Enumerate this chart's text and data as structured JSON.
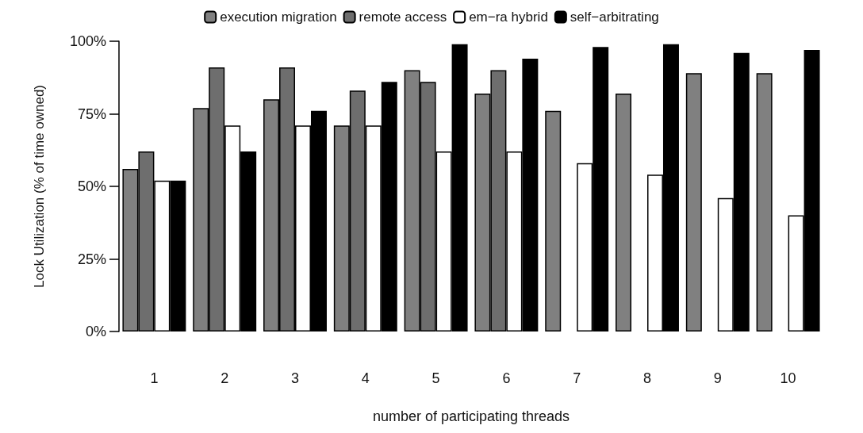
{
  "chart_data": {
    "type": "bar",
    "xlabel": "number of participating threads",
    "ylabel": "Lock Utilization (% of time owned)",
    "categories": [
      "1",
      "2",
      "3",
      "4",
      "5",
      "6",
      "7",
      "8",
      "9",
      "10"
    ],
    "series": [
      {
        "name": "execution migration",
        "color": "#808080",
        "values": [
          56,
          77,
          80,
          71,
          90,
          82,
          76,
          82,
          89,
          89
        ]
      },
      {
        "name": "remote access",
        "color": "#6e6e6e",
        "values": [
          62,
          91,
          91,
          83,
          86,
          90,
          null,
          null,
          null,
          null
        ]
      },
      {
        "name": "em−ra hybrid",
        "color": "#ffffff",
        "values": [
          52,
          71,
          71,
          71,
          62,
          62,
          58,
          54,
          46,
          40
        ]
      },
      {
        "name": "self−arbitrating",
        "color": "#000000",
        "values": [
          52,
          62,
          76,
          86,
          99,
          94,
          98,
          99,
          96,
          97
        ]
      }
    ],
    "ylim": [
      0,
      100
    ],
    "yticks": [
      {
        "value": 0,
        "label": "0%"
      },
      {
        "value": 25,
        "label": "25%"
      },
      {
        "value": 50,
        "label": "50%"
      },
      {
        "value": 75,
        "label": "75%"
      },
      {
        "value": 100,
        "label": "100%"
      }
    ],
    "grid": false,
    "legend": "top"
  }
}
